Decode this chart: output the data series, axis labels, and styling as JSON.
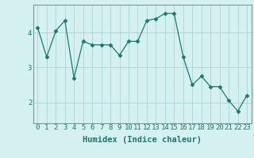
{
  "x": [
    0,
    1,
    2,
    3,
    4,
    5,
    6,
    7,
    8,
    9,
    10,
    11,
    12,
    13,
    14,
    15,
    16,
    17,
    18,
    19,
    20,
    21,
    22,
    23
  ],
  "y": [
    4.15,
    3.3,
    4.05,
    4.35,
    2.7,
    3.75,
    3.65,
    3.65,
    3.65,
    3.35,
    3.75,
    3.75,
    4.35,
    4.4,
    4.55,
    4.55,
    3.3,
    2.5,
    2.75,
    2.45,
    2.45,
    2.05,
    1.75,
    2.2
  ],
  "line_color": "#1a7a6e",
  "marker": "D",
  "marker_size": 2.5,
  "bg_color": "#d4f0f0",
  "grid_color": "#b0d8d8",
  "xlabel": "Humidex (Indice chaleur)",
  "xlim": [
    -0.5,
    23.5
  ],
  "ylim": [
    1.4,
    4.8
  ],
  "yticks": [
    2,
    3,
    4
  ],
  "xtick_labels": [
    "0",
    "1",
    "2",
    "3",
    "4",
    "5",
    "6",
    "7",
    "8",
    "9",
    "10",
    "11",
    "12",
    "13",
    "14",
    "15",
    "16",
    "17",
    "18",
    "19",
    "20",
    "21",
    "22",
    "23"
  ],
  "xlabel_fontsize": 7.5,
  "tick_fontsize": 6.5
}
